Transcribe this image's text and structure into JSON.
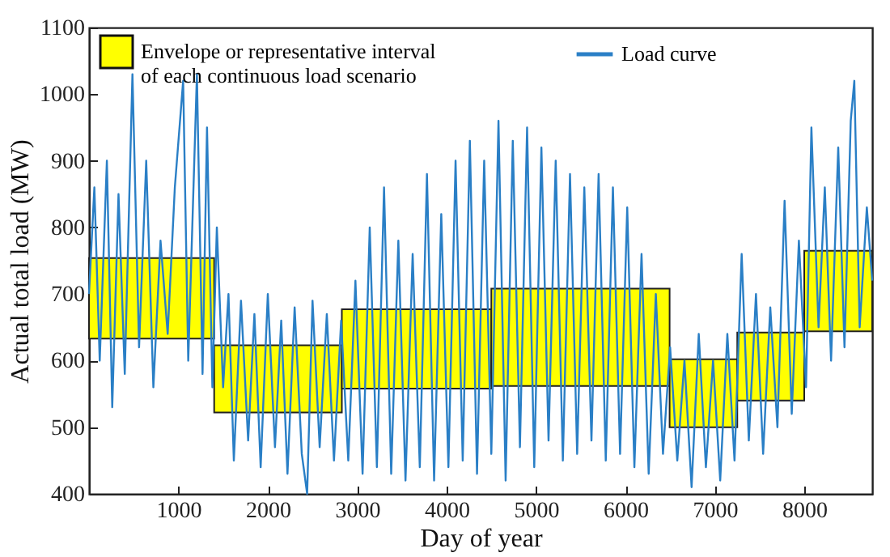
{
  "chart_data": {
    "type": "line",
    "xlabel": "Day of year",
    "ylabel": "Actual total load (MW)",
    "xlim": [
      0,
      8760
    ],
    "xticks": [
      1000,
      2000,
      3000,
      4000,
      5000,
      6000,
      7000,
      8000
    ],
    "ylim": [
      400,
      1100
    ],
    "yticks": [
      400,
      500,
      600,
      700,
      800,
      900,
      1000,
      1100
    ],
    "grid": false,
    "legend": "top",
    "series": [
      {
        "name": "Envelope or representative interval of each continuous load scenario",
        "type": "bar",
        "color": "#ffff00",
        "x": [
          700,
          2114,
          3664,
          5497,
          6872.5,
          7625.5,
          8380
        ],
        "base": [
          633,
          522,
          558,
          562,
          500,
          540,
          644
        ],
        "values": [
          121,
          101,
          119,
          146,
          102,
          102,
          121
        ]
      },
      {
        "name": "Load curve",
        "color": "#2a7fc6",
        "x": [
          0,
          60,
          120,
          200,
          260,
          330,
          400,
          486,
          560,
          640,
          720,
          800,
          880,
          960,
          1053,
          1110,
          1207,
          1270,
          1320,
          1380,
          1430,
          1500,
          1560,
          1620,
          1700,
          1780,
          1850,
          1920,
          2000,
          2080,
          2150,
          2220,
          2300,
          2380,
          2440,
          2500,
          2580,
          2660,
          2740,
          2820,
          2900,
          2980,
          3060,
          3140,
          3220,
          3300,
          3380,
          3460,
          3540,
          3620,
          3700,
          3780,
          3860,
          3940,
          4020,
          4100,
          4180,
          4260,
          4340,
          4420,
          4500,
          4580,
          4660,
          4740,
          4820,
          4900,
          4980,
          5060,
          5140,
          5220,
          5300,
          5380,
          5460,
          5540,
          5620,
          5700,
          5780,
          5860,
          5940,
          6020,
          6100,
          6180,
          6260,
          6340,
          6420,
          6500,
          6580,
          6660,
          6740,
          6820,
          6900,
          6980,
          7060,
          7140,
          7220,
          7300,
          7380,
          7460,
          7540,
          7620,
          7700,
          7780,
          7860,
          7940,
          8020,
          8080,
          8160,
          8230,
          8300,
          8380,
          8450,
          8520,
          8560,
          8620,
          8700,
          8760
        ],
        "values": [
          700,
          860,
          600,
          900,
          530,
          850,
          580,
          1030,
          620,
          900,
          560,
          780,
          640,
          860,
          1020,
          600,
          1030,
          580,
          950,
          560,
          800,
          560,
          700,
          450,
          690,
          480,
          670,
          440,
          700,
          470,
          660,
          430,
          680,
          460,
          400,
          690,
          470,
          670,
          450,
          660,
          450,
          720,
          430,
          800,
          440,
          860,
          430,
          780,
          420,
          760,
          440,
          880,
          420,
          820,
          440,
          900,
          450,
          930,
          430,
          900,
          460,
          960,
          420,
          930,
          470,
          950,
          440,
          920,
          480,
          900,
          450,
          880,
          460,
          860,
          480,
          880,
          450,
          860,
          460,
          830,
          440,
          760,
          430,
          700,
          460,
          620,
          450,
          600,
          410,
          640,
          440,
          600,
          420,
          640,
          450,
          760,
          480,
          700,
          460,
          680,
          500,
          840,
          520,
          780,
          560,
          950,
          650,
          860,
          600,
          920,
          620,
          960,
          1020,
          650,
          830,
          720
        ]
      }
    ]
  }
}
